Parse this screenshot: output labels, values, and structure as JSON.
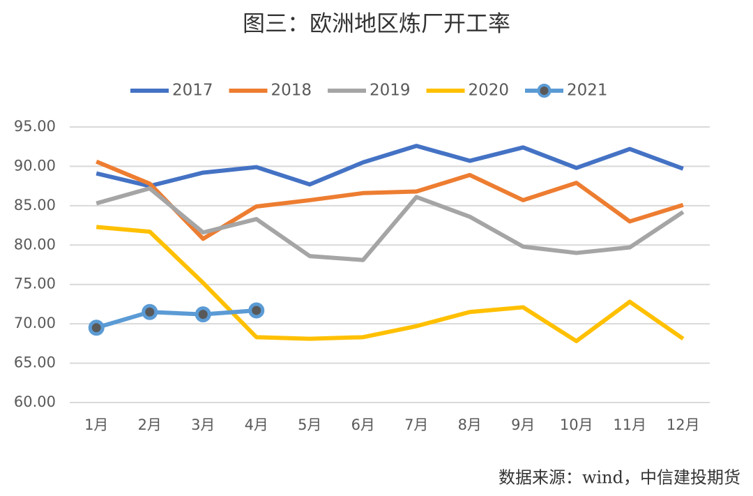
{
  "chart_data": {
    "type": "line",
    "title": "图三：欧洲地区炼厂开工率",
    "source": "数据来源：wind，中信建投期货",
    "categories": [
      "1月",
      "2月",
      "3月",
      "4月",
      "5月",
      "6月",
      "7月",
      "8月",
      "9月",
      "10月",
      "11月",
      "12月"
    ],
    "series": [
      {
        "name": "2017",
        "color": "#4472c4",
        "values": [
          89.1,
          87.5,
          89.2,
          89.9,
          87.7,
          90.5,
          92.6,
          90.7,
          92.4,
          89.8,
          92.2,
          89.7
        ]
      },
      {
        "name": "2018",
        "color": "#ed7d31",
        "values": [
          90.6,
          87.8,
          80.8,
          84.9,
          85.7,
          86.6,
          86.8,
          88.9,
          85.7,
          87.9,
          83.0,
          85.1
        ]
      },
      {
        "name": "2019",
        "color": "#a5a5a5",
        "values": [
          85.3,
          87.2,
          81.6,
          83.3,
          78.6,
          78.1,
          86.1,
          83.6,
          79.8,
          79.0,
          79.7,
          84.2
        ]
      },
      {
        "name": "2020",
        "color": "#ffc000",
        "values": [
          82.3,
          81.7,
          75.2,
          68.3,
          68.1,
          68.3,
          69.7,
          71.5,
          72.1,
          67.8,
          72.8,
          68.1
        ]
      },
      {
        "name": "2021",
        "color": "#5b9bd5",
        "marker": true,
        "values": [
          69.5,
          71.5,
          71.2,
          71.7,
          null,
          null,
          null,
          null,
          null,
          null,
          null,
          null
        ]
      }
    ],
    "ylim": [
      60,
      95
    ],
    "yticks": [
      {
        "value": 60,
        "label": "60.00"
      },
      {
        "value": 65,
        "label": "65.00"
      },
      {
        "value": 70,
        "label": "70.00"
      },
      {
        "value": 75,
        "label": "75.00"
      },
      {
        "value": 80,
        "label": "80.00"
      },
      {
        "value": 85,
        "label": "85.00"
      },
      {
        "value": 90,
        "label": "90.00"
      },
      {
        "value": 95,
        "label": "95.00"
      }
    ],
    "grid": true,
    "legend": "top"
  }
}
